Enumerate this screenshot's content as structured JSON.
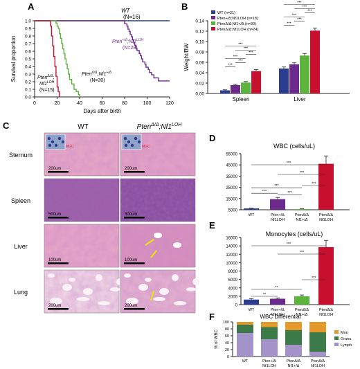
{
  "colors": {
    "wt": "#2b3d8f",
    "het": "#6b2a8c",
    "pten_nf1": "#5db33c",
    "loh": "#c8102e",
    "mon": "#e39a2b",
    "granu": "#3c7a4a",
    "lymph": "#a493c8"
  },
  "panel_labels": [
    "A",
    "B",
    "C",
    "D",
    "E",
    "F"
  ],
  "chart_data": [
    {
      "id": "A",
      "type": "line",
      "xlabel": "Days after birth",
      "ylabel": "Survival proportion",
      "xlim": [
        0,
        120
      ],
      "ylim": [
        0,
        1.0
      ],
      "xticks": [
        "0",
        "20",
        "40",
        "60",
        "80",
        "100",
        "120"
      ],
      "yticks": [
        "0.0",
        "0.1",
        "0.2",
        "0.3",
        "0.4",
        "0.5",
        "0.6",
        "0.7",
        "0.8",
        "0.9",
        "1.0"
      ],
      "series": [
        {
          "name": "WT",
          "n": "(N=16)",
          "color": "wt",
          "points": [
            [
              0,
              1.0
            ],
            [
              120,
              1.0
            ]
          ]
        },
        {
          "name": "Pten+/Δ;Nf1LOH",
          "n": "(N=28)",
          "color": "het",
          "points": [
            [
              0,
              1
            ],
            [
              80,
              1
            ],
            [
              80,
              0.96
            ],
            [
              82,
              0.96
            ],
            [
              82,
              0.93
            ],
            [
              83,
              0.93
            ],
            [
              83,
              0.89
            ],
            [
              84,
              0.89
            ],
            [
              84,
              0.86
            ],
            [
              85,
              0.86
            ],
            [
              85,
              0.82
            ],
            [
              86,
              0.82
            ],
            [
              86,
              0.79
            ],
            [
              87,
              0.79
            ],
            [
              87,
              0.75
            ],
            [
              88,
              0.75
            ],
            [
              88,
              0.71
            ],
            [
              89,
              0.71
            ],
            [
              89,
              0.68
            ],
            [
              90,
              0.68
            ],
            [
              90,
              0.64
            ],
            [
              91,
              0.64
            ],
            [
              91,
              0.61
            ],
            [
              93,
              0.61
            ],
            [
              93,
              0.57
            ],
            [
              94,
              0.57
            ],
            [
              94,
              0.54
            ],
            [
              95,
              0.54
            ],
            [
              95,
              0.5
            ],
            [
              96,
              0.5
            ],
            [
              96,
              0.46
            ],
            [
              98,
              0.46
            ],
            [
              98,
              0.43
            ],
            [
              99,
              0.43
            ],
            [
              99,
              0.39
            ],
            [
              101,
              0.39
            ],
            [
              101,
              0.36
            ],
            [
              102,
              0.36
            ],
            [
              102,
              0.32
            ],
            [
              104,
              0.32
            ],
            [
              104,
              0.29
            ],
            [
              106,
              0.29
            ],
            [
              106,
              0.25
            ],
            [
              110,
              0.25
            ],
            [
              110,
              0.21
            ],
            [
              120,
              0.21
            ]
          ]
        },
        {
          "name": "PtenΔ/Δ;Nf1+/Δ",
          "n": "(N=30)",
          "color": "pten_nf1",
          "points": [
            [
              0,
              1
            ],
            [
              19,
              1
            ],
            [
              19,
              0.97
            ],
            [
              20,
              0.97
            ],
            [
              20,
              0.93
            ],
            [
              21,
              0.93
            ],
            [
              21,
              0.9
            ],
            [
              22,
              0.9
            ],
            [
              22,
              0.83
            ],
            [
              23,
              0.83
            ],
            [
              23,
              0.77
            ],
            [
              24,
              0.77
            ],
            [
              24,
              0.7
            ],
            [
              25,
              0.7
            ],
            [
              25,
              0.63
            ],
            [
              26,
              0.63
            ],
            [
              26,
              0.57
            ],
            [
              27,
              0.57
            ],
            [
              27,
              0.5
            ],
            [
              28,
              0.5
            ],
            [
              28,
              0.43
            ],
            [
              29,
              0.43
            ],
            [
              29,
              0.37
            ],
            [
              30,
              0.37
            ],
            [
              30,
              0.3
            ],
            [
              31,
              0.3
            ],
            [
              31,
              0.23
            ],
            [
              33,
              0.23
            ],
            [
              33,
              0.17
            ],
            [
              35,
              0.17
            ],
            [
              35,
              0.1
            ],
            [
              37,
              0.1
            ],
            [
              37,
              0.07
            ],
            [
              39,
              0.07
            ],
            [
              39,
              0.03
            ],
            [
              40,
              0.03
            ],
            [
              40,
              0
            ]
          ]
        },
        {
          "name": "PtenΔ/Δ;Nf1LOH",
          "n": "(N=15)",
          "color": "loh",
          "points": [
            [
              0,
              1
            ],
            [
              14,
              1
            ],
            [
              14,
              0.93
            ],
            [
              15,
              0.93
            ],
            [
              15,
              0.8
            ],
            [
              16,
              0.8
            ],
            [
              16,
              0.67
            ],
            [
              17,
              0.67
            ],
            [
              17,
              0.53
            ],
            [
              18,
              0.53
            ],
            [
              18,
              0.4
            ],
            [
              19,
              0.4
            ],
            [
              19,
              0.27
            ],
            [
              20,
              0.27
            ],
            [
              20,
              0.13
            ],
            [
              21,
              0.13
            ],
            [
              21,
              0.07
            ],
            [
              22,
              0.07
            ],
            [
              22,
              0
            ]
          ]
        }
      ],
      "labels": {
        "wt": "WT",
        "wt_n": "(N=16)",
        "het_a": "Pten",
        "het_sup": "+/Δ",
        "het_b": ";Nf1",
        "het_sup2": "LOH",
        "het_n": "(N=28)",
        "green_a": "Pten",
        "green_sup": "Δ/Δ",
        "green_b": ";Nf1",
        "green_sup2": "+/Δ",
        "green_n": "(N=30)",
        "red_a": "Pten",
        "red_sup": "Δ/Δ",
        "red_b": ";",
        "red_c": "Nf1",
        "red_sup2": "LOH",
        "red_n": "(N=15)"
      }
    },
    {
      "id": "B",
      "type": "bar",
      "ylabel": "Weight/BW",
      "ylim": [
        0,
        0.14
      ],
      "yticks": [
        "0.00",
        "0.02",
        "0.04",
        "0.06",
        "0.08",
        "0.10",
        "0.12",
        "0.14"
      ],
      "categories": [
        "Spleen",
        "Liver"
      ],
      "series": [
        {
          "name": "WT (n=21)",
          "color": "wt",
          "values": [
            0.006,
            0.048
          ],
          "err": [
            0.001,
            0.003
          ]
        },
        {
          "name": "Pten+/Δ;Nf1LOH (n=18)",
          "color": "het",
          "values": [
            0.016,
            0.056
          ],
          "err": [
            0.002,
            0.003
          ]
        },
        {
          "name": "PtenΔ/Δ;Nf1+/Δ (n=30)",
          "color": "pten_nf1",
          "values": [
            0.021,
            0.073
          ],
          "err": [
            0.002,
            0.004
          ]
        },
        {
          "name": "PtenΔ/Δ;Nf1LOH (n=24)",
          "color": "loh",
          "values": [
            0.043,
            0.121
          ],
          "err": [
            0.003,
            0.005
          ]
        }
      ],
      "sig": "***"
    },
    {
      "id": "D",
      "type": "bar",
      "title": "WBC (cells/uL)",
      "ylim": [
        5000,
        55000
      ],
      "yticks": [
        "5000",
        "15000",
        "25000",
        "35000",
        "45000",
        "55000"
      ],
      "categories": [
        [
          "WT"
        ],
        [
          "Pten+/Δ",
          "Nf1LOH"
        ],
        [
          "PtenΔ/Δ",
          "Nf1+/Δ"
        ],
        [
          "PtenΔ/Δ",
          "Nf1LOH"
        ]
      ],
      "values": [
        6200,
        14500,
        5600,
        46000
      ],
      "err": [
        300,
        1500,
        300,
        7000
      ],
      "colors": [
        "wt",
        "het",
        "pten_nf1",
        "loh"
      ],
      "sig": "***"
    },
    {
      "id": "E",
      "type": "bar",
      "title": "Monocytes (cells/uL)",
      "ylim": [
        0,
        16000
      ],
      "yticks": [
        "0",
        "2000",
        "4000",
        "6000",
        "8000",
        "10000",
        "12000",
        "14000",
        "16000"
      ],
      "categories": [
        [
          "WT"
        ],
        [
          "Pten+/Δ",
          "Nf1LOH"
        ],
        [
          "PtenΔ/Δ",
          "Nf1+/Δ"
        ],
        [
          "PtenΔ/Δ",
          "Nf1LOH"
        ]
      ],
      "values": [
        1200,
        1400,
        2000,
        13700
      ],
      "err": [
        200,
        200,
        300,
        1600
      ],
      "colors": [
        "wt",
        "het",
        "pten_nf1",
        "loh"
      ],
      "sig2": "**",
      "sig3": "***"
    },
    {
      "id": "F",
      "type": "bar",
      "title": "WBC Differential",
      "ylabel": "% of WBC",
      "ylim": [
        0,
        100
      ],
      "yticks": [
        "0",
        "20",
        "40",
        "60",
        "80",
        "100"
      ],
      "categories": [
        [
          "WT"
        ],
        [
          "Pten+/Δ",
          "Nf1LOH"
        ],
        [
          "PtenΔ/Δ",
          "Nf1+/Δ"
        ],
        [
          "PtenΔ/Δ",
          "Nf1LOH"
        ]
      ],
      "series": [
        {
          "name": "Lymph",
          "color": "lymph",
          "values": [
            68,
            50,
            34,
            14
          ]
        },
        {
          "name": "Granu",
          "color": "granu",
          "values": [
            24,
            35,
            42,
            56
          ]
        },
        {
          "name": "Mon",
          "color": "mon",
          "values": [
            8,
            15,
            24,
            30
          ]
        }
      ],
      "legend": [
        "Mon",
        "Granu",
        "Lymph"
      ]
    }
  ],
  "histology": {
    "col_wt": "WT",
    "col_mut_a": "Pten",
    "col_mut_sup": "Δ/Δ",
    "col_mut_b": ";Nf1",
    "col_mut_sup2": "LOH",
    "rows": [
      "Sternum",
      "Spleen",
      "Liver",
      "Lung"
    ],
    "scalebars": [
      [
        "200um",
        "200um"
      ],
      [
        "500um",
        "500um"
      ],
      [
        "100um",
        "100um"
      ],
      [
        "200um",
        "200um"
      ]
    ],
    "inset_label": "MGC"
  }
}
